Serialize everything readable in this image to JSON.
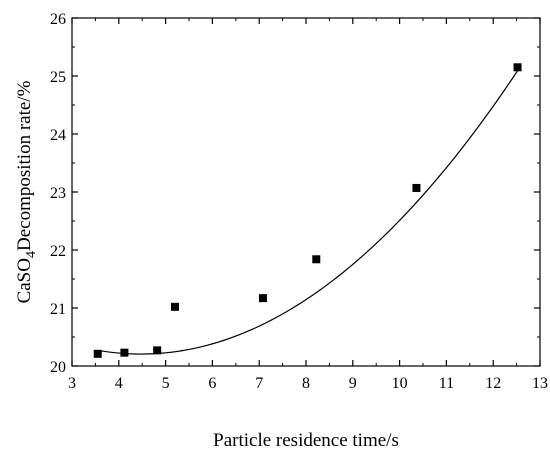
{
  "chart_data": {
    "type": "scatter",
    "xlabel": "Particle residence time/s",
    "ylabel": {
      "prefix": "CaSO",
      "subscript": "4",
      "suffix": "Decomposition rate/%"
    },
    "xlim": [
      3,
      13
    ],
    "ylim": [
      20,
      26
    ],
    "x_ticks": [
      "3",
      "4",
      "5",
      "6",
      "7",
      "8",
      "9",
      "10",
      "11",
      "12",
      "13"
    ],
    "y_ticks": [
      "20",
      "21",
      "22",
      "23",
      "24",
      "25",
      "26"
    ],
    "series": [
      {
        "marker": "square",
        "color": "#000000",
        "points": [
          {
            "x": 3.55,
            "y": 20.21
          },
          {
            "x": 4.12,
            "y": 20.23
          },
          {
            "x": 4.82,
            "y": 20.27
          },
          {
            "x": 5.2,
            "y": 21.02
          },
          {
            "x": 7.08,
            "y": 21.17
          },
          {
            "x": 8.22,
            "y": 21.84
          },
          {
            "x": 10.36,
            "y": 23.07
          },
          {
            "x": 12.52,
            "y": 25.15
          }
        ]
      }
    ],
    "fit_curve": {
      "type": "polynomial-2",
      "color": "#000000",
      "x_range": [
        3.55,
        12.52
      ],
      "points": [
        {
          "x": 3.55,
          "y": 20.27
        },
        {
          "x": 7.08,
          "y": 21.1
        },
        {
          "x": 10.36,
          "y": 22.82
        },
        {
          "x": 12.52,
          "y": 25.09
        }
      ]
    },
    "grid": false,
    "legend": "none"
  }
}
